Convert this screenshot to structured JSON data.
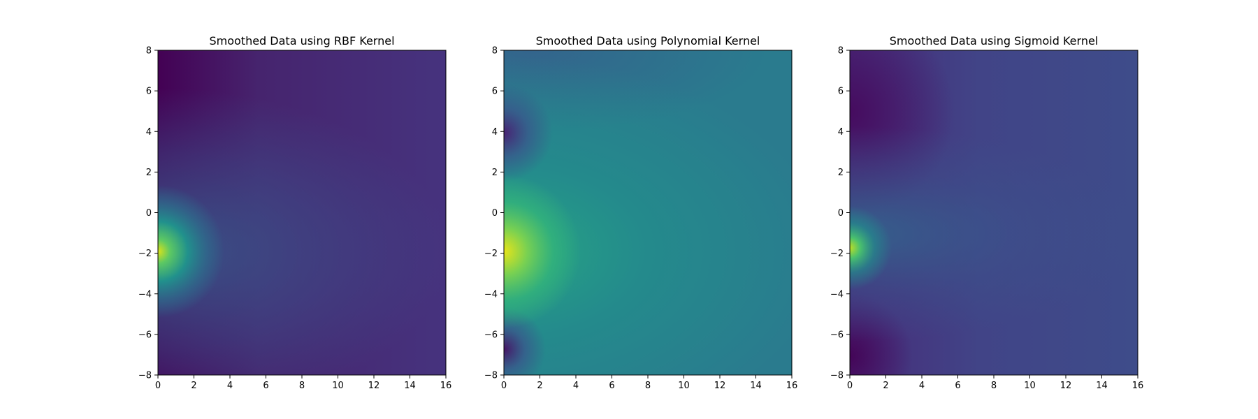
{
  "chart_data": [
    {
      "type": "heatmap",
      "title": "Smoothed Data using RBF Kernel",
      "xlim": [
        0,
        16
      ],
      "ylim": [
        -8,
        8
      ],
      "xticks": [
        "0",
        "2",
        "4",
        "6",
        "8",
        "10",
        "12",
        "14",
        "16"
      ],
      "yticks": [
        "8",
        "6",
        "4",
        "2",
        "0",
        "−2",
        "−4",
        "−6",
        "−8"
      ],
      "colormap": "viridis",
      "peak": {
        "x": 0,
        "y": -2
      },
      "grid": false
    },
    {
      "type": "heatmap",
      "title": "Smoothed Data using Polynomial Kernel",
      "xlim": [
        0,
        16
      ],
      "ylim": [
        -8,
        8
      ],
      "xticks": [
        "0",
        "2",
        "4",
        "6",
        "8",
        "10",
        "12",
        "14",
        "16"
      ],
      "yticks": [
        "8",
        "6",
        "4",
        "2",
        "0",
        "−2",
        "−4",
        "−6",
        "−8"
      ],
      "colormap": "viridis",
      "peak": {
        "x": 0,
        "y": -2
      },
      "grid": false
    },
    {
      "type": "heatmap",
      "title": "Smoothed Data using Sigmoid Kernel",
      "xlim": [
        0,
        16
      ],
      "ylim": [
        -8,
        8
      ],
      "xticks": [
        "0",
        "2",
        "4",
        "6",
        "8",
        "10",
        "12",
        "14",
        "16"
      ],
      "yticks": [
        "8",
        "6",
        "4",
        "2",
        "0",
        "−2",
        "−4",
        "−6",
        "−8"
      ],
      "colormap": "viridis",
      "peak": {
        "x": 0,
        "y": -2
      },
      "grid": false
    }
  ]
}
